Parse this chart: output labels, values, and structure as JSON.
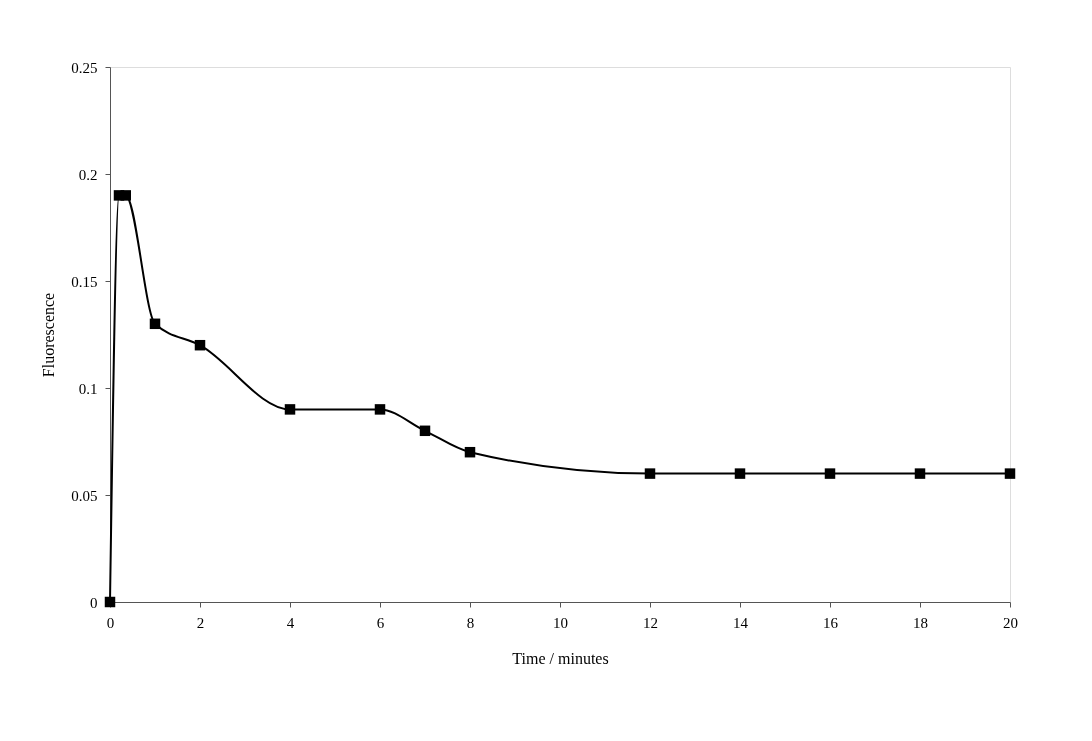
{
  "chart_data": {
    "type": "line",
    "xlabel": "Time / minutes",
    "ylabel": "Fluorescence",
    "x": [
      0,
      0.2,
      0.35,
      1,
      2,
      4,
      6,
      7,
      8,
      12,
      14,
      16,
      18,
      20
    ],
    "series": [
      {
        "color": "#000000",
        "values": [
          0,
          0.19,
          0.19,
          0.13,
          0.12,
          0.09,
          0.09,
          0.08,
          0.07,
          0.06,
          0.06,
          0.06,
          0.06,
          0.06
        ]
      }
    ],
    "xlim": [
      0,
      20
    ],
    "xticks": [
      0,
      2,
      4,
      6,
      8,
      10,
      12,
      14,
      16,
      18,
      20
    ],
    "ylim": [
      0,
      0.25
    ],
    "yticks": [
      0,
      0.05,
      0.1,
      0.15,
      0.2,
      0.25
    ],
    "grid": false,
    "legend": false,
    "marker": "square",
    "line_style": "solid"
  }
}
